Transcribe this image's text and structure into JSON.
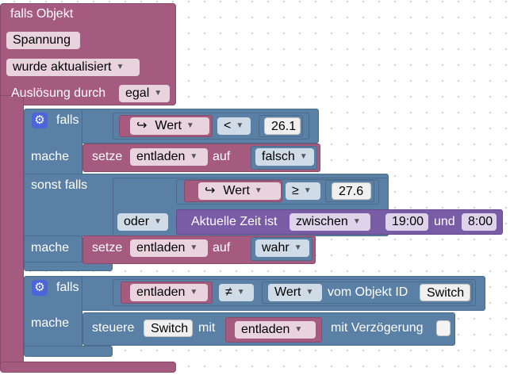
{
  "event_block": {
    "title": "falls Objekt",
    "object_name": "Spannung",
    "trigger": "wurde aktualisiert",
    "cause_label": "Auslösung durch",
    "cause_value": "egal"
  },
  "if_block_1": {
    "if_label": "falls",
    "compare_1": {
      "var_icon": "↪",
      "var": "Wert",
      "op": "<",
      "value": "26.1"
    },
    "do_label": "mache",
    "set_1": {
      "label": "setze",
      "var": "entladen",
      "to_label": "auf",
      "value": "falsch"
    },
    "elseif_label": "sonst falls",
    "compare_2": {
      "var_icon": "↪",
      "var": "Wert",
      "op": "≥",
      "value": "27.6"
    },
    "logic_op": "oder",
    "time_check": {
      "label": "Aktuelle Zeit ist",
      "mode": "zwischen",
      "from": "19:00",
      "and_label": "und",
      "to": "8:00"
    },
    "do2_label": "mache",
    "set_2": {
      "label": "setze",
      "var": "entladen",
      "to_label": "auf",
      "value": "wahr"
    }
  },
  "if_block_2": {
    "if_label": "falls",
    "compare": {
      "var": "entladen",
      "op": "≠",
      "prop": "Wert",
      "of_label": "vom Objekt ID",
      "object_id": "Switch"
    },
    "do_label": "mache",
    "control": {
      "label": "steuere",
      "target": "Switch",
      "with_label": "mit",
      "value_var": "entladen",
      "delay_label": "mit Verzögerung"
    }
  },
  "icons": {
    "gear": "gear-icon",
    "dropdown": "dropdown-arrow-icon",
    "var_ref": "variable-reference-icon"
  },
  "colors": {
    "event": "#a55b80",
    "control": "#5b80a5",
    "time": "#7a5ba5",
    "gear": "#4a66d9"
  }
}
